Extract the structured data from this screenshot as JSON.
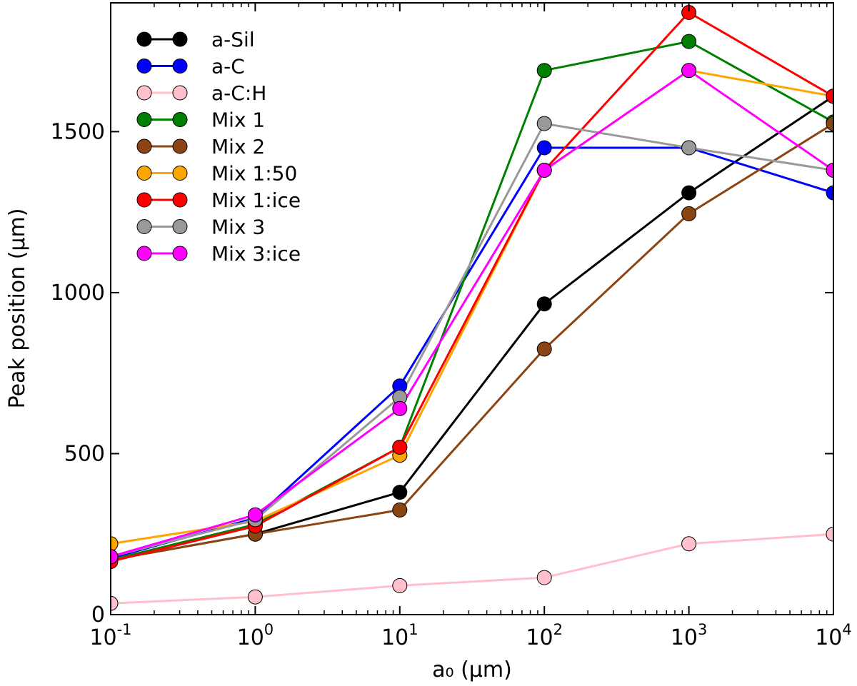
{
  "chart_data": {
    "type": "line",
    "title": "",
    "xlabel": "a₀ (μm)",
    "ylabel": "Peak position (μm)",
    "xscale": "log",
    "xlim": [
      0.1,
      10000
    ],
    "ylim": [
      0,
      1900
    ],
    "grid": false,
    "legend_position": "top-left",
    "x": [
      0.1,
      1,
      10,
      100,
      1000,
      10000
    ],
    "xticks": [
      {
        "base": "10",
        "exp": "-1"
      },
      {
        "base": "10",
        "exp": "0"
      },
      {
        "base": "10",
        "exp": "1"
      },
      {
        "base": "10",
        "exp": "2"
      },
      {
        "base": "10",
        "exp": "3"
      },
      {
        "base": "10",
        "exp": "4"
      }
    ],
    "yticks": [
      "0",
      "500",
      "1000",
      "1500"
    ],
    "series": [
      {
        "name": "a-Sil",
        "color": "#000000",
        "values": [
          170,
          250,
          380,
          965,
          1310,
          1610
        ]
      },
      {
        "name": "a-C",
        "color": "#0000ff",
        "values": [
          175,
          300,
          710,
          1450,
          1450,
          1310
        ]
      },
      {
        "name": "a-C:H",
        "color": "#ffc0cb",
        "values": [
          35,
          55,
          90,
          115,
          220,
          250
        ]
      },
      {
        "name": "Mix 1",
        "color": "#008000",
        "values": [
          170,
          280,
          520,
          1690,
          1780,
          1530
        ]
      },
      {
        "name": "Mix 2",
        "color": "#8b4513",
        "values": [
          170,
          250,
          325,
          825,
          1245,
          1525
        ]
      },
      {
        "name": "Mix 1:50",
        "color": "#ffa500",
        "values": [
          220,
          290,
          495,
          1380,
          1690,
          1610
        ]
      },
      {
        "name": "Mix 1:ice",
        "color": "#ff0000",
        "values": [
          165,
          275,
          520,
          1380,
          1870,
          1610
        ]
      },
      {
        "name": "Mix 3",
        "color": "#999999",
        "values": [
          180,
          295,
          675,
          1525,
          1450,
          1380
        ]
      },
      {
        "name": "Mix 3:ice",
        "color": "#ff00ff",
        "values": [
          180,
          310,
          640,
          1380,
          1690,
          1380
        ]
      }
    ]
  }
}
